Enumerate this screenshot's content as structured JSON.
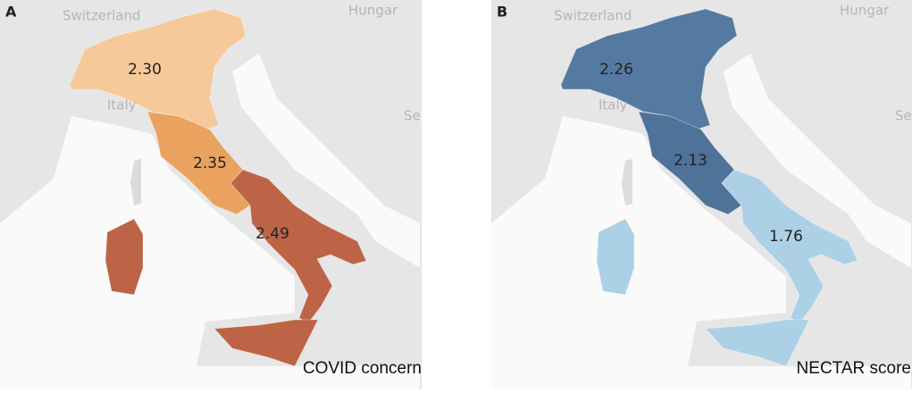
{
  "panels": [
    {
      "label": "A",
      "title": "COVID concern",
      "place_labels": [
        "Switzerland",
        "Hungar",
        "Italy",
        "Se"
      ],
      "regions": [
        {
          "value": "2.30",
          "color": "#f5c99a"
        },
        {
          "value": "2.35",
          "color": "#e9a35f"
        },
        {
          "value": "2.49",
          "color": "#bd6446"
        }
      ]
    },
    {
      "label": "B",
      "title": "NECTAR score",
      "place_labels": [
        "Switzerland",
        "Hungar",
        "Italy",
        "Se"
      ],
      "regions": [
        {
          "value": "2.26",
          "color": "#557aa1"
        },
        {
          "value": "2.13",
          "color": "#4f7299"
        },
        {
          "value": "1.76",
          "color": "#acd0e6"
        }
      ]
    }
  ]
}
